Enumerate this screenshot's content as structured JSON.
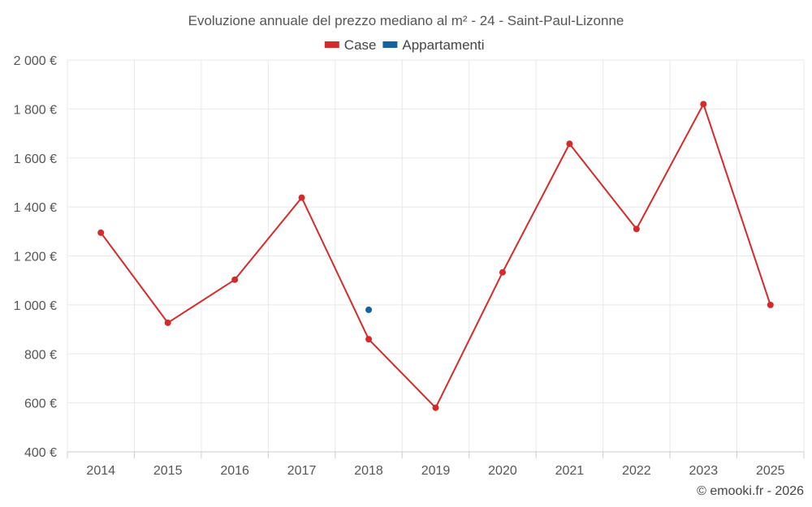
{
  "chart_data": {
    "type": "line",
    "title": "Evoluzione annuale del prezzo mediano al m² - 24 - Saint-Paul-Lizonne",
    "categories": [
      "2014",
      "2015",
      "2016",
      "2017",
      "2018",
      "2019",
      "2020",
      "2021",
      "2022",
      "2023",
      "2025"
    ],
    "ylim": [
      400,
      2000
    ],
    "y_ticks": [
      400,
      600,
      800,
      1000,
      1200,
      1400,
      1600,
      1800,
      2000
    ],
    "y_tick_labels": [
      "400 €",
      "600 €",
      "800 €",
      "1 000 €",
      "1 200 €",
      "1 400 €",
      "1 600 €",
      "1 800 €",
      "2 000 €"
    ],
    "grid": true,
    "legend_position": "top-center",
    "series": [
      {
        "name": "Case",
        "color": "#d42a2a",
        "values": [
          1295,
          927,
          1103,
          1438,
          860,
          580,
          1133,
          1658,
          1310,
          1820,
          1000
        ]
      },
      {
        "name": "Appartamenti",
        "color": "#1064a3",
        "values": [
          null,
          null,
          null,
          null,
          980,
          null,
          null,
          null,
          null,
          null,
          null
        ]
      }
    ]
  },
  "credit": "© emooki.fr - 2026"
}
